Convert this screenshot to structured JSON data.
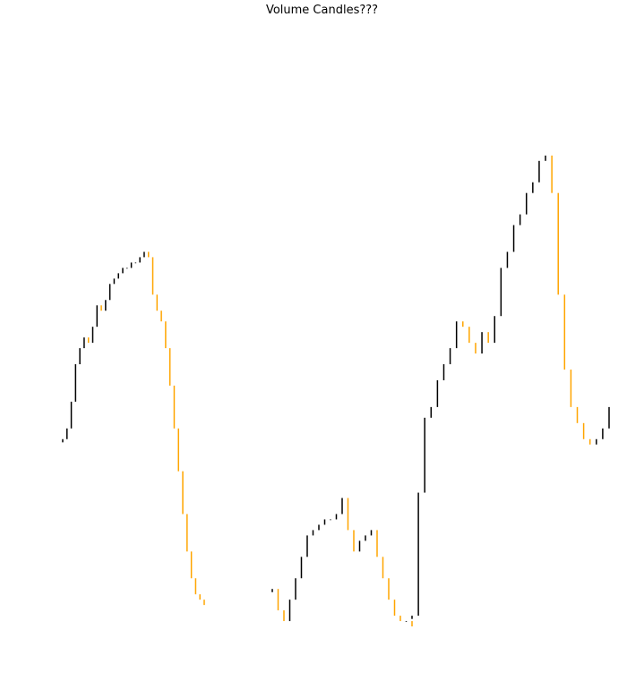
{
  "chart_data": {
    "type": "candlestick",
    "title": "Volume Candles???",
    "xlabel": "",
    "ylabel": "",
    "axes_visible": false,
    "grid": false,
    "colors": {
      "up": "#000000",
      "down": "#ffa500"
    },
    "ylim": [
      0,
      100
    ],
    "segments": [
      {
        "close": [
          38,
          40,
          45,
          52,
          55,
          57,
          56,
          59,
          63,
          62,
          64,
          67,
          68,
          69,
          70,
          70,
          71,
          71,
          72,
          73,
          72,
          65,
          62,
          60,
          55,
          48,
          40,
          32,
          24,
          17,
          12,
          9,
          8,
          7
        ]
      },
      {
        "close": [
          10,
          6,
          4,
          8,
          12,
          16,
          20,
          21,
          22,
          23,
          23,
          24,
          27,
          21,
          17,
          19,
          20,
          21,
          16,
          12,
          8,
          5,
          4,
          4,
          3
        ]
      },
      {
        "close": [
          5,
          28,
          42,
          44,
          49,
          52,
          55,
          60,
          59,
          56,
          54,
          58,
          56,
          61,
          70,
          73,
          78,
          80,
          84,
          86,
          90,
          91,
          84,
          65,
          51,
          44,
          41,
          38,
          37,
          38,
          40,
          44
        ]
      }
    ]
  }
}
